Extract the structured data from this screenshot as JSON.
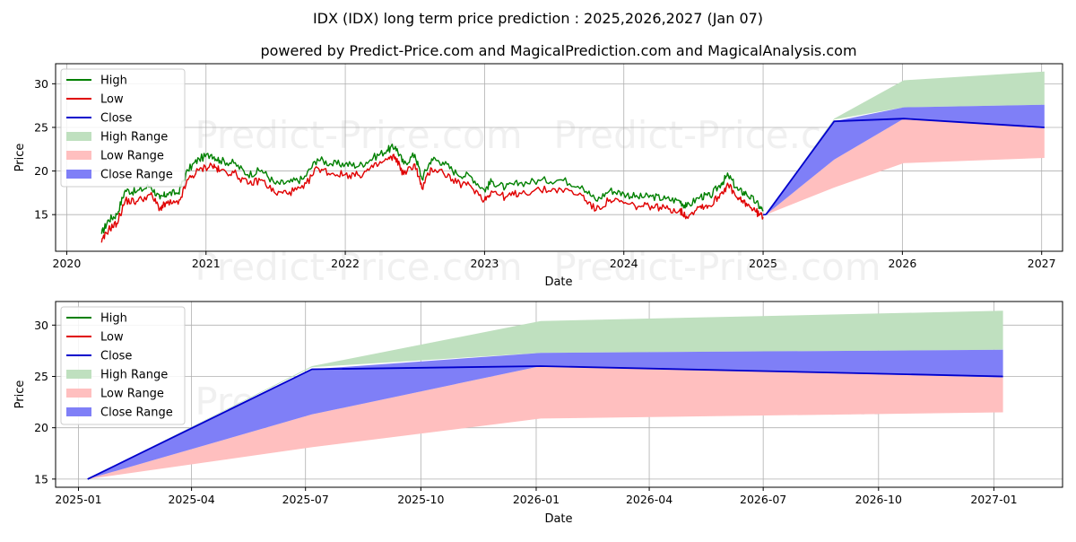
{
  "title": "IDX (IDX) long term price prediction : 2025,2026,2027 (Jan 07)",
  "subtitle": "powered by Predict-Price.com and MagicalPrediction.com and MagicalAnalysis.com",
  "watermark": "Predict-Price.com",
  "colors": {
    "high": "#008000",
    "low": "#e00000",
    "close": "#0000cc",
    "high_range": "#bfe0bf",
    "low_range": "#ffbfbf",
    "close_range": "#7f7ff7",
    "grid": "#b0b0b0"
  },
  "legend": [
    {
      "label": "High",
      "kind": "line",
      "color_key": "high"
    },
    {
      "label": "Low",
      "kind": "line",
      "color_key": "low"
    },
    {
      "label": "Close",
      "kind": "line",
      "color_key": "close"
    },
    {
      "label": "High Range",
      "kind": "patch",
      "color_key": "high_range"
    },
    {
      "label": "Low Range",
      "kind": "patch",
      "color_key": "low_range"
    },
    {
      "label": "Close Range",
      "kind": "patch",
      "color_key": "close_range"
    }
  ],
  "chart_data": [
    {
      "type": "line",
      "title": "IDX (IDX) long term price prediction : 2025,2026,2027 (Jan 07)",
      "xlabel": "Date",
      "ylabel": "Price",
      "xlim": [
        2019.92,
        2027.15
      ],
      "ylim": [
        10.8,
        32.3
      ],
      "x_ticks": [
        2020,
        2021,
        2022,
        2023,
        2024,
        2025,
        2026,
        2027
      ],
      "x_tick_labels": [
        "2020",
        "2021",
        "2022",
        "2023",
        "2024",
        "2025",
        "2026",
        "2027"
      ],
      "y_ticks": [
        15,
        20,
        25,
        30
      ],
      "y_tick_labels": [
        "15",
        "20",
        "25",
        "30"
      ],
      "legend_position": "top-left",
      "history": {
        "x": [
          2020.25,
          2020.3,
          2020.36,
          2020.42,
          2020.5,
          2020.6,
          2020.67,
          2020.72,
          2020.8,
          2020.87,
          2020.95,
          2021.04,
          2021.1,
          2021.2,
          2021.3,
          2021.4,
          2021.5,
          2021.6,
          2021.7,
          2021.8,
          2021.9,
          2022.0,
          2022.1,
          2022.2,
          2022.3,
          2022.36,
          2022.42,
          2022.5,
          2022.55,
          2022.62,
          2022.7,
          2022.8,
          2022.9,
          2023.0,
          2023.05,
          2023.15,
          2023.25,
          2023.4,
          2023.55,
          2023.7,
          2023.8,
          2023.9,
          2024.0,
          2024.1,
          2024.2,
          2024.3,
          2024.4,
          2024.45,
          2024.55,
          2024.62,
          2024.7,
          2024.75,
          2024.82,
          2024.88,
          2024.95,
          2025.0
        ],
        "close": [
          12.2,
          13.8,
          14.5,
          17.2,
          17.0,
          17.8,
          16.2,
          16.8,
          16.8,
          19.5,
          20.7,
          21.3,
          20.6,
          20.3,
          19.0,
          19.5,
          17.9,
          18.1,
          18.5,
          20.9,
          20.2,
          20.2,
          20.0,
          20.9,
          21.8,
          22.2,
          20.1,
          21.3,
          18.5,
          20.8,
          20.4,
          19.1,
          18.8,
          17.2,
          18.2,
          17.5,
          18.0,
          18.3,
          18.4,
          17.7,
          16.0,
          17.2,
          16.8,
          16.4,
          16.5,
          16.2,
          16.0,
          15.3,
          16.5,
          16.5,
          18.0,
          18.9,
          17.2,
          16.8,
          15.8,
          15.0
        ],
        "high": [
          12.8,
          14.4,
          15.0,
          17.8,
          17.6,
          18.3,
          16.8,
          17.4,
          17.5,
          20.1,
          21.4,
          21.9,
          21.2,
          20.9,
          19.6,
          20.1,
          18.5,
          18.7,
          19.1,
          21.4,
          20.8,
          20.8,
          20.6,
          21.5,
          22.4,
          22.8,
          20.8,
          21.9,
          19.1,
          21.4,
          21.0,
          19.7,
          19.4,
          17.8,
          18.8,
          18.1,
          18.6,
          18.9,
          19.0,
          18.3,
          16.6,
          17.8,
          17.4,
          17.0,
          17.1,
          16.8,
          16.6,
          15.9,
          17.1,
          17.1,
          18.6,
          19.5,
          17.8,
          17.4,
          16.4,
          15.4
        ],
        "low": [
          11.8,
          13.3,
          14.0,
          16.6,
          16.5,
          17.3,
          15.7,
          16.3,
          16.2,
          19.0,
          20.1,
          20.7,
          20.0,
          19.8,
          18.5,
          19.0,
          17.4,
          17.6,
          18.0,
          20.4,
          19.7,
          19.6,
          19.5,
          20.4,
          21.3,
          21.6,
          19.6,
          20.8,
          18.0,
          20.3,
          19.9,
          18.6,
          18.3,
          16.7,
          17.7,
          17.0,
          17.5,
          17.8,
          17.9,
          17.2,
          15.5,
          16.7,
          16.3,
          15.9,
          16.0,
          15.7,
          15.5,
          14.8,
          16.0,
          16.0,
          17.5,
          18.4,
          16.7,
          16.3,
          15.3,
          14.7
        ]
      },
      "forecast": {
        "x": [
          2025.02,
          2025.51,
          2026.01,
          2027.02
        ],
        "close": [
          15.0,
          25.7,
          26.0,
          25.0
        ],
        "high_range": {
          "lower": [
            15.0,
            25.9,
            27.3,
            27.6
          ],
          "upper": [
            15.0,
            26.0,
            30.4,
            31.4
          ]
        },
        "close_range": {
          "lower": [
            15.0,
            21.3,
            26.0,
            24.9
          ],
          "upper": [
            15.0,
            25.7,
            27.3,
            27.6
          ]
        },
        "low_range": {
          "lower": [
            15.0,
            18.1,
            20.9,
            21.5
          ],
          "upper": [
            15.0,
            21.3,
            26.0,
            24.9
          ]
        }
      }
    },
    {
      "type": "line",
      "xlabel": "Date",
      "ylabel": "Price",
      "xlim": [
        2024.95,
        2027.15
      ],
      "ylim": [
        14.2,
        32.3
      ],
      "x_ticks": [
        2025.0,
        2025.247,
        2025.496,
        2025.748,
        2026.0,
        2026.247,
        2026.496,
        2026.748,
        2027.0
      ],
      "x_tick_labels": [
        "2025-01",
        "2025-04",
        "2025-07",
        "2025-10",
        "2026-01",
        "2026-04",
        "2026-07",
        "2026-10",
        "2027-01"
      ],
      "y_ticks": [
        15,
        20,
        25,
        30
      ],
      "y_tick_labels": [
        "15",
        "20",
        "25",
        "30"
      ],
      "legend_position": "top-left",
      "forecast": {
        "x": [
          2025.02,
          2025.51,
          2026.01,
          2027.02
        ],
        "close": [
          15.0,
          25.7,
          26.0,
          25.0
        ],
        "high_range": {
          "lower": [
            15.0,
            25.9,
            27.3,
            27.6
          ],
          "upper": [
            15.0,
            26.0,
            30.4,
            31.4
          ]
        },
        "close_range": {
          "lower": [
            15.0,
            21.3,
            26.0,
            24.9
          ],
          "upper": [
            15.0,
            25.7,
            27.3,
            27.6
          ]
        },
        "low_range": {
          "lower": [
            15.0,
            18.1,
            20.9,
            21.5
          ],
          "upper": [
            15.0,
            21.3,
            26.0,
            24.9
          ]
        }
      }
    }
  ]
}
